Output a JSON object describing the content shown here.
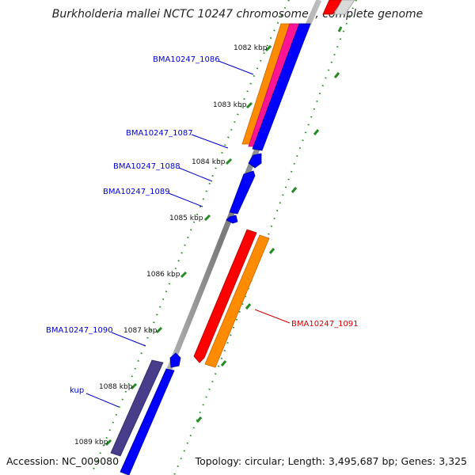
{
  "title": "Burkholderia mallei NCTC 10247 chromosome I, complete genome",
  "footer": {
    "accession": "Accession: NC_009080",
    "stats": "Topology: circular; Length: 3,495,687 bp; Genes: 3,325"
  },
  "ticks": [
    {
      "label": "1082 kbp"
    },
    {
      "label": "1083 kbp"
    },
    {
      "label": "1084 kbp"
    },
    {
      "label": "1085 kbp"
    },
    {
      "label": "1086 kbp"
    },
    {
      "label": "1087 kbp"
    },
    {
      "label": "1088 kbp"
    },
    {
      "label": "1089 kbp"
    }
  ],
  "gene_labels": [
    {
      "name": "BMA10247_1086",
      "color": "#0000cc"
    },
    {
      "name": "BMA10247_1087",
      "color": "#0000cc"
    },
    {
      "name": "BMA10247_1088",
      "color": "#0000cc"
    },
    {
      "name": "BMA10247_1089",
      "color": "#0000cc"
    },
    {
      "name": "BMA10247_1090",
      "color": "#0000cc"
    },
    {
      "name": "kup",
      "color": "#0000cc"
    },
    {
      "name": "BMA10247_1091",
      "color": "#cc0000"
    }
  ],
  "colors": {
    "cds_blue": "#0000ff",
    "rna_red": "#ff0000",
    "orange": "#ff8c00",
    "magenta": "#ff1493",
    "purple": "#483d8b",
    "backbone": "#888888",
    "tick_green": "#228b22"
  }
}
